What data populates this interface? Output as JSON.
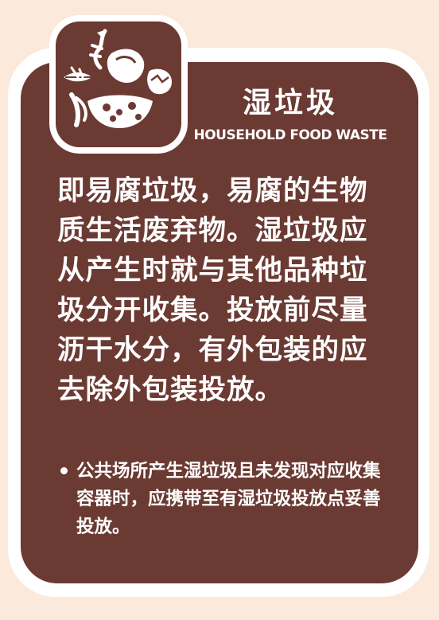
{
  "header": {
    "title_cn": "湿垃圾",
    "title_en": "HOUSEHOLD FOOD WASTE"
  },
  "icon": {
    "name": "food-waste-icon"
  },
  "body": {
    "description": "即易腐垃圾，易腐的生物质生活废弃物。湿垃圾应从产生时就与其他品种垃圾分开收集。投放前尽量沥干水分，有外包装的应去除外包装投放。"
  },
  "note": {
    "text": "公共场所产生湿垃圾且未发现对应收集容器时，应携带至有湿垃圾投放点妥善投放。"
  },
  "colors": {
    "background": "#fbe9db",
    "card": "#6b3a33",
    "text": "#ffffff"
  }
}
